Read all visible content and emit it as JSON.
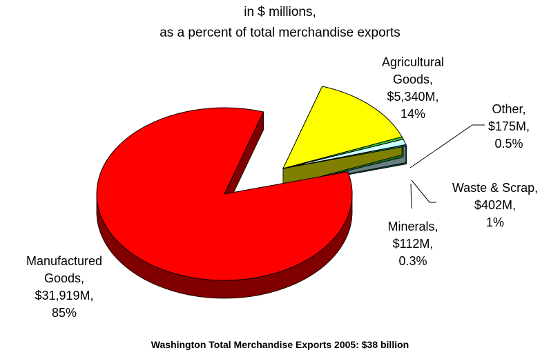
{
  "chart_data": {
    "type": "pie",
    "subtitle_lines": [
      "in $ millions,",
      "as a percent of total merchandise exports"
    ],
    "footer": "Washington Total Merchandise Exports 2005:  $38 billion",
    "slices": [
      {
        "name": "Manufactured Goods",
        "value_millions": 31919,
        "value_text": "$31,919M",
        "percent": 85,
        "percent_text": "85%",
        "color": "#ff0000",
        "side_color": "#800000",
        "label_lines": [
          "Manufactured",
          "Goods,",
          "$31,919M,",
          "85%"
        ]
      },
      {
        "name": "Agricultural Goods",
        "value_millions": 5340,
        "value_text": "$5,340M",
        "percent": 14,
        "percent_text": "14%",
        "color": "#ffff00",
        "side_color": "#808000",
        "label_lines": [
          "Agricultural",
          "Goods,",
          "$5,340M,",
          "14%"
        ]
      },
      {
        "name": "Other",
        "value_millions": 175,
        "value_text": "$175M",
        "percent": 0.5,
        "percent_text": "0.5%",
        "color": "#33cc33",
        "side_color": "#196619",
        "label_lines": [
          "Other,",
          "$175M,",
          "0.5%"
        ]
      },
      {
        "name": "Waste & Scrap",
        "value_millions": 402,
        "value_text": "$402M",
        "percent": 1,
        "percent_text": "1%",
        "color": "#ccffff",
        "side_color": "#668080",
        "label_lines": [
          "Waste & Scrap,",
          "$402M,",
          "1%"
        ]
      },
      {
        "name": "Minerals",
        "value_millions": 112,
        "value_text": "$112M",
        "percent": 0.3,
        "percent_text": "0.3%",
        "color": "#008080",
        "side_color": "#004040",
        "label_lines": [
          "Minerals,",
          "$112M,",
          "0.3%"
        ]
      }
    ]
  }
}
